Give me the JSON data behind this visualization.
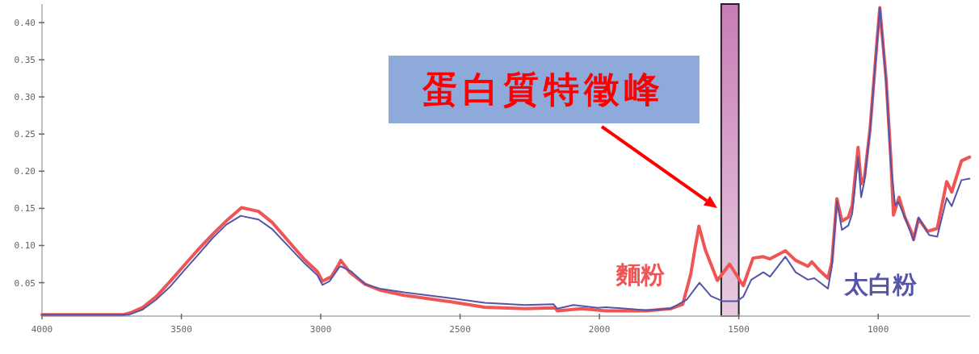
{
  "chart_data": {
    "type": "line",
    "xlim": [
      4000,
      670
    ],
    "ylim": [
      0.005,
      0.425
    ],
    "xticks": [
      4000,
      3500,
      3000,
      2500,
      2000,
      1500,
      1000
    ],
    "yticks": [
      0.05,
      {
        "value": 0.1,
        "label": "0.10"
      },
      0.15,
      {
        "value": 0.2,
        "label": "0.20"
      },
      0.25,
      {
        "value": 0.3,
        "label": "0.30"
      },
      0.35,
      {
        "value": 0.4,
        "label": "0.40"
      }
    ],
    "grid": false,
    "bands": [
      {
        "axis": "x",
        "from": 1563,
        "to": 1500,
        "color": "#c77db5"
      }
    ],
    "annotations": [
      "蛋白質特徵峰"
    ],
    "series": [
      {
        "name": "麵粉",
        "color": "#f05555",
        "x": [
          4000,
          3707,
          3678,
          3638,
          3591,
          3542,
          3493,
          3441,
          3388,
          3339,
          3284,
          3223,
          3174,
          3116,
          3058,
          3012,
          2994,
          2962,
          2933,
          2928,
          2896,
          2841,
          2788,
          2701,
          2528,
          2412,
          2267,
          2159,
          2151,
          2064,
          2006,
          1977,
          1832,
          1745,
          1701,
          1672,
          1658,
          1643,
          1620,
          1577,
          1533,
          1496,
          1484,
          1449,
          1412,
          1388,
          1333,
          1296,
          1252,
          1238,
          1209,
          1180,
          1166,
          1148,
          1130,
          1107,
          1093,
          1072,
          1061,
          1049,
          1029,
          1006,
          994,
          971,
          954,
          945,
          925,
          904,
          881,
          873,
          855,
          823,
          788,
          754,
          736,
          701,
          672
        ],
        "values": [
          0.007,
          0.007,
          0.01,
          0.017,
          0.031,
          0.051,
          0.072,
          0.094,
          0.115,
          0.133,
          0.151,
          0.146,
          0.131,
          0.106,
          0.081,
          0.065,
          0.052,
          0.058,
          0.076,
          0.08,
          0.064,
          0.048,
          0.04,
          0.033,
          0.024,
          0.017,
          0.015,
          0.016,
          0.012,
          0.015,
          0.013,
          0.012,
          0.012,
          0.015,
          0.021,
          0.062,
          0.094,
          0.126,
          0.094,
          0.053,
          0.075,
          0.053,
          0.046,
          0.083,
          0.085,
          0.082,
          0.093,
          0.08,
          0.072,
          0.078,
          0.066,
          0.056,
          0.078,
          0.163,
          0.133,
          0.138,
          0.154,
          0.232,
          0.183,
          0.192,
          0.257,
          0.366,
          0.42,
          0.322,
          0.214,
          0.141,
          0.165,
          0.138,
          0.119,
          0.108,
          0.136,
          0.119,
          0.123,
          0.186,
          0.172,
          0.214,
          0.219
        ]
      },
      {
        "name": "太白粉",
        "color": "#5555a8",
        "x": [
          4000,
          3687,
          3638,
          3591,
          3542,
          3493,
          3441,
          3388,
          3339,
          3287,
          3223,
          3174,
          3116,
          3058,
          3012,
          2994,
          2968,
          2933,
          2928,
          2890,
          2841,
          2788,
          2701,
          2528,
          2412,
          2267,
          2165,
          2151,
          2093,
          2006,
          1977,
          1832,
          1745,
          1687,
          1641,
          1600,
          1557,
          1507,
          1484,
          1455,
          1412,
          1388,
          1333,
          1296,
          1252,
          1229,
          1180,
          1166,
          1148,
          1130,
          1107,
          1093,
          1072,
          1061,
          1049,
          1029,
          1006,
          994,
          971,
          954,
          939,
          928,
          904,
          873,
          855,
          817,
          788,
          754,
          736,
          701,
          672
        ],
        "values": [
          0.007,
          0.007,
          0.014,
          0.027,
          0.044,
          0.065,
          0.087,
          0.11,
          0.128,
          0.14,
          0.135,
          0.122,
          0.099,
          0.076,
          0.06,
          0.047,
          0.052,
          0.071,
          0.072,
          0.065,
          0.048,
          0.042,
          0.037,
          0.029,
          0.023,
          0.02,
          0.021,
          0.015,
          0.02,
          0.016,
          0.017,
          0.013,
          0.015,
          0.027,
          0.05,
          0.032,
          0.025,
          0.025,
          0.031,
          0.054,
          0.064,
          0.058,
          0.085,
          0.064,
          0.054,
          0.056,
          0.042,
          0.072,
          0.16,
          0.121,
          0.127,
          0.143,
          0.219,
          0.165,
          0.187,
          0.255,
          0.363,
          0.42,
          0.32,
          0.208,
          0.154,
          0.159,
          0.138,
          0.107,
          0.138,
          0.114,
          0.112,
          0.164,
          0.153,
          0.188,
          0.19
        ]
      }
    ]
  }
}
